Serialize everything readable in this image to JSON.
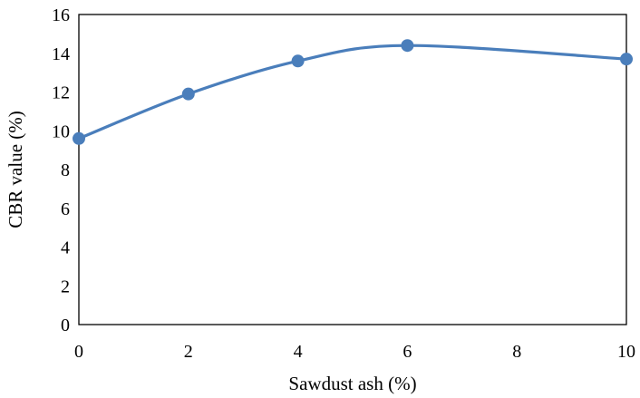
{
  "chart_data": {
    "type": "line",
    "smooth": true,
    "title": "",
    "xlabel": "Sawdust ash (%)",
    "ylabel": "CBR value (%)",
    "x": [
      0,
      2,
      4,
      6,
      10
    ],
    "x_tick_labels": [
      "0",
      "2",
      "4",
      "6",
      "8",
      "10"
    ],
    "y_tick_labels": [
      "0",
      "2",
      "4",
      "6",
      "8",
      "10",
      "12",
      "14",
      "16"
    ],
    "xlim": [
      0,
      10
    ],
    "ylim": [
      0,
      16
    ],
    "grid": false,
    "legend": "none",
    "series": [
      {
        "values": [
          9.6,
          11.9,
          13.6,
          14.4,
          13.7
        ],
        "color": "#4A7EBB",
        "marker": "circle"
      }
    ]
  }
}
